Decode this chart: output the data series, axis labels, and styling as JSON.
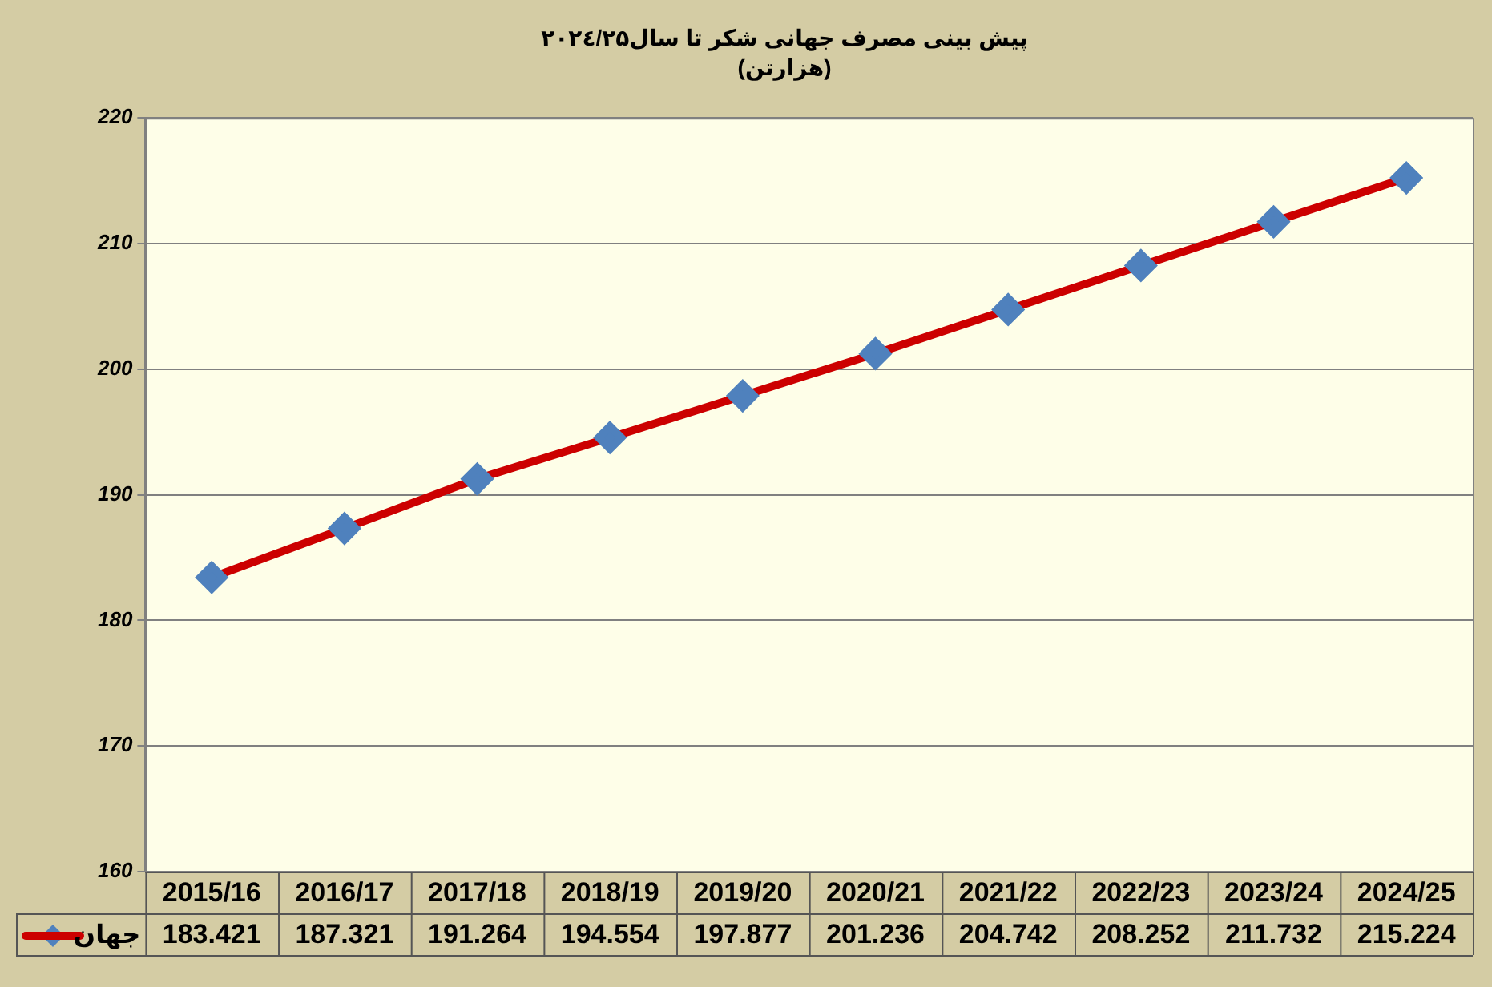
{
  "chart_data": {
    "type": "line",
    "title": "پیش بینی مصرف جهانی شکر تا سال۲۰۲٤/۲۵",
    "subtitle": "(هزارتن)",
    "categories": [
      "2015/16",
      "2016/17",
      "2017/18",
      "2018/19",
      "2019/20",
      "2020/21",
      "2021/22",
      "2022/23",
      "2023/24",
      "2024/25"
    ],
    "series": [
      {
        "name": "جهان",
        "color": "#cc0000",
        "values": [
          183.421,
          187.321,
          191.264,
          194.554,
          197.877,
          201.236,
          204.742,
          208.252,
          211.732,
          215.224
        ]
      }
    ],
    "ylim": [
      160,
      220
    ],
    "yticks": [
      160,
      170,
      180,
      190,
      200,
      210,
      220
    ],
    "grid": "y",
    "legend": "bottom",
    "marker": "diamond",
    "line_style": "solid",
    "data_labels": true
  }
}
